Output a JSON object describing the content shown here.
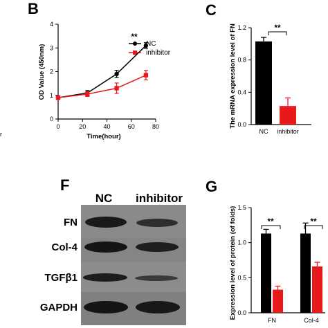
{
  "chart_data": [
    {
      "panel": "B",
      "type": "line",
      "x": [
        0,
        24,
        48,
        72
      ],
      "x_ticks": [
        "0",
        "20",
        "40",
        "60",
        "80"
      ],
      "y_ticks": [
        "0",
        "1",
        "2",
        "3",
        "4"
      ],
      "xlim": [
        0,
        80
      ],
      "ylim": [
        0,
        4
      ],
      "xlabel": "Time(hour)",
      "ylabel": "OD Value (450nm)",
      "series": [
        {
          "name": "NC",
          "values": [
            0.9,
            1.1,
            1.9,
            3.1
          ],
          "errors": [
            0.08,
            0.1,
            0.15,
            0.12
          ],
          "color": "#000000",
          "marker": "circle"
        },
        {
          "name": "inhibitor",
          "values": [
            0.9,
            1.05,
            1.3,
            1.85
          ],
          "errors": [
            0.08,
            0.1,
            0.22,
            0.2
          ],
          "color": "#e8191d",
          "marker": "square"
        }
      ],
      "annotations": [
        "**"
      ],
      "legend": "top-left"
    },
    {
      "panel": "C",
      "type": "bar",
      "categories": [
        "NC",
        "inhibitor"
      ],
      "values": [
        1.03,
        0.23
      ],
      "errors": [
        0.05,
        0.1
      ],
      "colors": [
        "#000000",
        "#e8191d"
      ],
      "y_ticks": [
        "0.0",
        "0.4",
        "0.8",
        "1.2"
      ],
      "ylim": [
        0,
        1.2
      ],
      "ylabel": "The mRNA expression level of FN",
      "annotations": [
        "**"
      ]
    },
    {
      "panel": "G",
      "type": "bar",
      "categories": [
        "FN",
        "Col-4"
      ],
      "series": [
        {
          "name": "NC",
          "values": [
            1.13,
            1.13
          ],
          "errors": [
            0.06,
            0.15
          ],
          "color": "#000000"
        },
        {
          "name": "inhibitor",
          "values": [
            0.33,
            0.66
          ],
          "errors": [
            0.05,
            0.06
          ],
          "color": "#e8191d"
        }
      ],
      "y_ticks": [
        "0.0",
        "0.5",
        "1.0",
        "1.5"
      ],
      "ylim": [
        0,
        1.5
      ],
      "ylabel": "Expression level of protein (of folds)",
      "annotations": [
        "**",
        "**"
      ]
    }
  ],
  "panels": {
    "B": "B",
    "C": "C",
    "F": "F",
    "G": "G"
  },
  "blot": {
    "columns": [
      "NC",
      "inhibitor"
    ],
    "rows": [
      "FN",
      "Col-4",
      "TGFβ1",
      "GAPDH"
    ]
  },
  "cropped_text": "r"
}
